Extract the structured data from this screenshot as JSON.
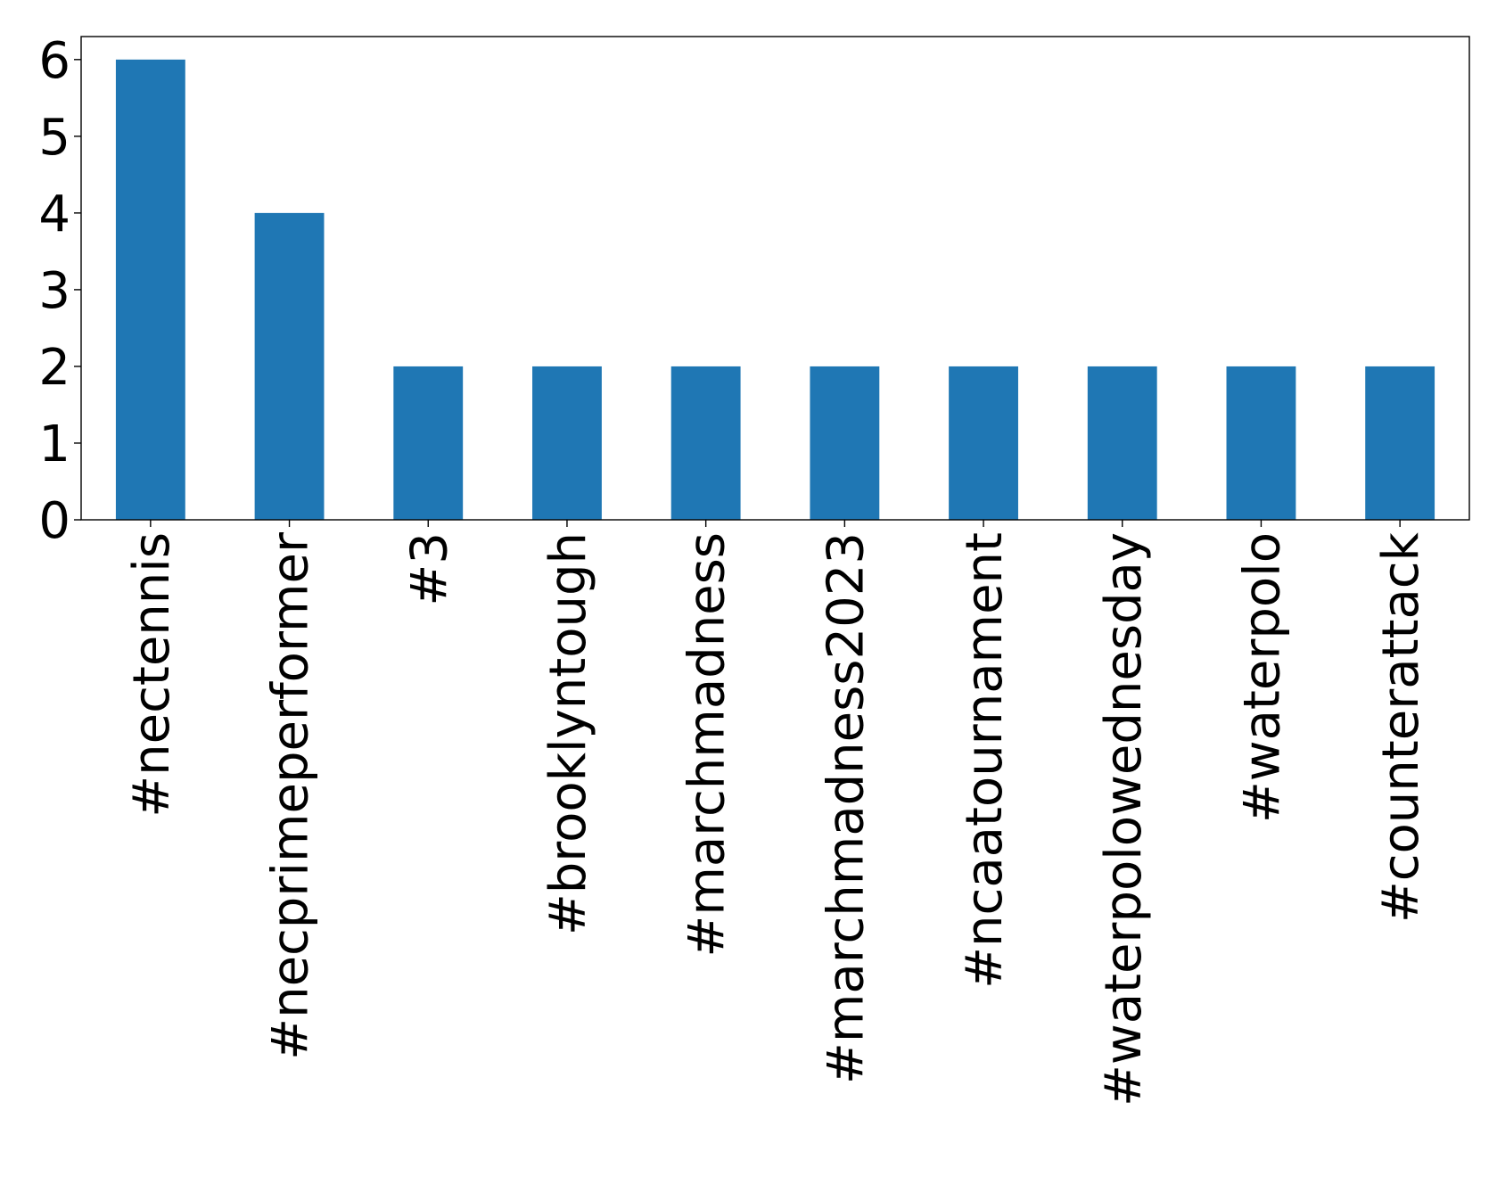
{
  "chart_data": {
    "type": "bar",
    "title": "",
    "xlabel": "",
    "ylabel": "",
    "categories": [
      "#nectennis",
      "#necprimeperformer",
      "#3",
      "#brooklyntough",
      "#marchmadness",
      "#marchmadness2023",
      "#ncaatournament",
      "#waterpolowednesday",
      "#waterpolo",
      "#counterattack"
    ],
    "values": [
      6,
      4,
      2,
      2,
      2,
      2,
      2,
      2,
      2,
      2
    ],
    "ylim": [
      0,
      6.3
    ],
    "yticks": [
      0,
      1,
      2,
      3,
      4,
      5,
      6
    ],
    "grid": false,
    "legend": false,
    "bar_color": "#1f77b4"
  }
}
